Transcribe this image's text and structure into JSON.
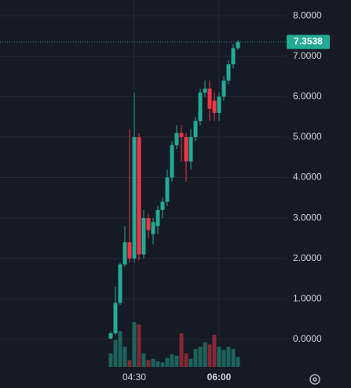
{
  "chart_data": {
    "type": "candlestick",
    "categories": [
      null,
      null,
      null,
      null,
      null,
      "04:30",
      null,
      null,
      null,
      null,
      null,
      null,
      null,
      null,
      null,
      null,
      null,
      null,
      null,
      null,
      null,
      null,
      null,
      "06:00",
      null,
      null,
      null,
      null
    ],
    "open": [
      0.02,
      0.15,
      0.9,
      1.85,
      2.4,
      2.0,
      5.0,
      2.1,
      3.0,
      2.6,
      2.8,
      3.2,
      3.4,
      4.0,
      4.8,
      5.1,
      5.0,
      4.4,
      5.0,
      5.4,
      6.1,
      6.2,
      5.9,
      5.6,
      6.0,
      6.4,
      6.8,
      7.2
    ],
    "high": [
      0.2,
      1.3,
      1.9,
      2.8,
      5.2,
      6.1,
      5.1,
      3.2,
      3.1,
      3.0,
      3.3,
      3.5,
      4.2,
      4.9,
      5.3,
      5.3,
      5.1,
      5.2,
      5.5,
      6.2,
      6.4,
      6.4,
      6.1,
      6.1,
      6.5,
      6.9,
      7.3,
      7.4
    ],
    "low": [
      0.0,
      0.1,
      0.85,
      1.8,
      1.9,
      1.9,
      1.95,
      2.0,
      2.5,
      2.35,
      2.6,
      3.0,
      3.3,
      3.9,
      4.7,
      4.4,
      3.9,
      4.2,
      4.9,
      5.3,
      6.0,
      5.4,
      5.4,
      5.4,
      5.9,
      6.3,
      6.7,
      7.15
    ],
    "close": [
      0.15,
      0.9,
      1.85,
      2.4,
      2.0,
      5.0,
      2.1,
      3.0,
      2.7,
      2.9,
      3.2,
      3.4,
      4.0,
      4.8,
      5.1,
      5.0,
      4.4,
      5.0,
      5.4,
      6.1,
      6.2,
      5.7,
      5.6,
      6.0,
      6.4,
      6.8,
      7.2,
      7.35
    ],
    "volume": [
      30,
      60,
      80,
      45,
      15,
      100,
      95,
      30,
      15,
      18,
      12,
      10,
      20,
      28,
      25,
      75,
      30,
      18,
      40,
      45,
      55,
      50,
      72,
      45,
      38,
      45,
      40,
      22
    ],
    "up_color": "#22ab94",
    "down_color": "#f23645",
    "last_price": 7.3538,
    "ylim": [
      -0.68,
      8.39
    ],
    "yticks": [
      {
        "value": 0,
        "label": "0.0000"
      },
      {
        "value": 1,
        "label": "1.0000"
      },
      {
        "value": 2,
        "label": "2.0000"
      },
      {
        "value": 3,
        "label": "3.0000"
      },
      {
        "value": 4,
        "label": "4.0000"
      },
      {
        "value": 5,
        "label": "5.0000"
      },
      {
        "value": 6,
        "label": "6.0000"
      },
      {
        "value": 7,
        "label": "7.0000"
      },
      {
        "value": 8,
        "label": "8.0000"
      }
    ],
    "grid": true
  }
}
